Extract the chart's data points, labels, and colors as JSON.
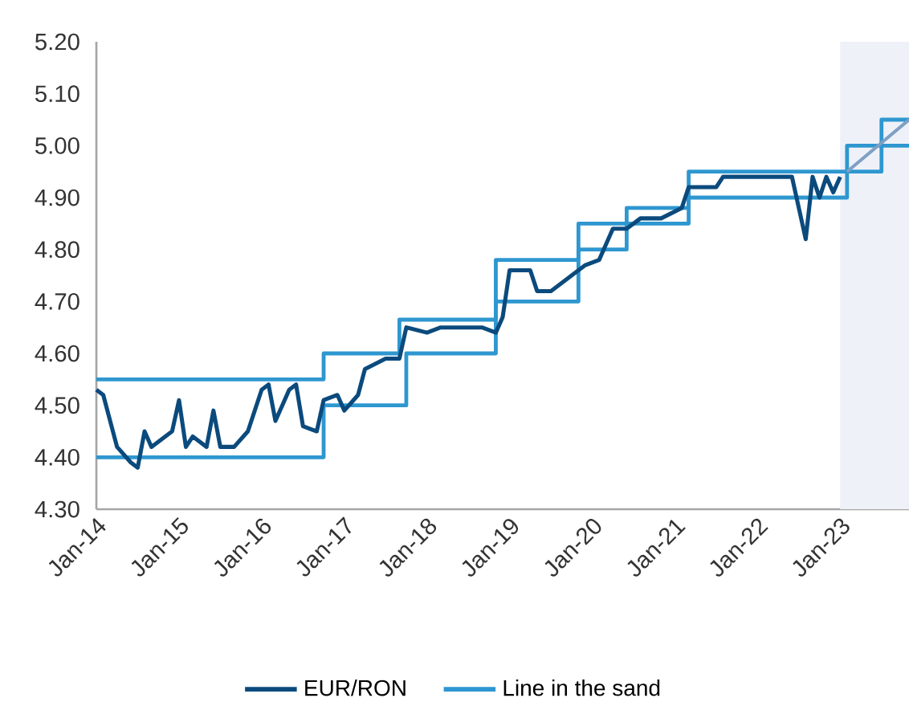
{
  "chart_data": {
    "type": "line",
    "xlim": [
      "2014-01",
      "2023-11"
    ],
    "xticks": [
      {
        "value": "2014-01",
        "label": "Jan-14"
      },
      {
        "value": "2015-01",
        "label": "Jan-15"
      },
      {
        "value": "2016-01",
        "label": "Jan-16"
      },
      {
        "value": "2017-01",
        "label": "Jan-17"
      },
      {
        "value": "2018-01",
        "label": "Jan-18"
      },
      {
        "value": "2019-01",
        "label": "Jan-19"
      },
      {
        "value": "2020-01",
        "label": "Jan-20"
      },
      {
        "value": "2021-01",
        "label": "Jan-21"
      },
      {
        "value": "2022-01",
        "label": "Jan-22"
      },
      {
        "value": "2023-01",
        "label": "Jan-23"
      }
    ],
    "ylim": [
      4.3,
      5.2
    ],
    "yticks": [
      {
        "value": 4.3,
        "label": "4.30"
      },
      {
        "value": 4.4,
        "label": "4.40"
      },
      {
        "value": 4.5,
        "label": "4.50"
      },
      {
        "value": 4.6,
        "label": "4.60"
      },
      {
        "value": 4.7,
        "label": "4.70"
      },
      {
        "value": 4.8,
        "label": "4.80"
      },
      {
        "value": 4.9,
        "label": "4.90"
      },
      {
        "value": 5.0,
        "label": "5.00"
      },
      {
        "value": 5.1,
        "label": "5.10"
      },
      {
        "value": 5.2,
        "label": "5.20"
      }
    ],
    "grid": false,
    "legend": "bottom",
    "bands": [
      {
        "axis": "x",
        "from": "2023-01",
        "to": "2023-11",
        "color": "#eef1f8"
      }
    ],
    "series": [
      {
        "name": "EUR/RON",
        "color": "#0b4a7d",
        "x": [
          "2014-01",
          "2014-02",
          "2014-03",
          "2014-04",
          "2014-06",
          "2014-07",
          "2014-08",
          "2014-09",
          "2014-10",
          "2014-12",
          "2015-01",
          "2015-02",
          "2015-03",
          "2015-05",
          "2015-06",
          "2015-07",
          "2015-09",
          "2015-11",
          "2016-01",
          "2016-02",
          "2016-03",
          "2016-04",
          "2016-05",
          "2016-06",
          "2016-07",
          "2016-09",
          "2016-10",
          "2016-12",
          "2017-01",
          "2017-03",
          "2017-04",
          "2017-07",
          "2017-09",
          "2017-10",
          "2018-01",
          "2018-03",
          "2018-05",
          "2018-07",
          "2018-09",
          "2018-11",
          "2018-12",
          "2019-01",
          "2019-04",
          "2019-05",
          "2019-07",
          "2019-12",
          "2020-02",
          "2020-03",
          "2020-04",
          "2020-06",
          "2020-08",
          "2020-11",
          "2021-02",
          "2021-03",
          "2021-07",
          "2021-08",
          "2022-02",
          "2022-06",
          "2022-07",
          "2022-08",
          "2022-09",
          "2022-10",
          "2022-11",
          "2022-12",
          "2023-01"
        ],
        "values": [
          4.53,
          4.52,
          4.47,
          4.42,
          4.39,
          4.38,
          4.45,
          4.42,
          4.43,
          4.45,
          4.51,
          4.42,
          4.44,
          4.42,
          4.49,
          4.42,
          4.42,
          4.45,
          4.53,
          4.54,
          4.47,
          4.5,
          4.53,
          4.54,
          4.46,
          4.45,
          4.51,
          4.52,
          4.49,
          4.52,
          4.57,
          4.59,
          4.59,
          4.65,
          4.64,
          4.65,
          4.65,
          4.65,
          4.65,
          4.64,
          4.67,
          4.76,
          4.76,
          4.72,
          4.72,
          4.77,
          4.78,
          4.81,
          4.84,
          4.84,
          4.86,
          4.86,
          4.88,
          4.92,
          4.92,
          4.94,
          4.94,
          4.94,
          4.88,
          4.82,
          4.94,
          4.9,
          4.94,
          4.91,
          4.94
        ]
      },
      {
        "name": "Line in the sand",
        "type": "step",
        "color": "#2e97d0",
        "x": [
          "2014-01",
          "2016-10",
          "2017-09",
          "2018-11",
          "2019-11",
          "2020-06",
          "2021-03",
          "2023-02",
          "2023-07",
          "2023-11"
        ],
        "values": [
          4.55,
          4.6,
          4.665,
          4.78,
          4.85,
          4.88,
          4.95,
          5.0,
          5.05,
          5.05
        ]
      },
      {
        "type": "step",
        "color": "#2e97d0",
        "x": [
          "2014-01",
          "2016-10",
          "2017-10",
          "2018-11",
          "2019-11",
          "2020-06",
          "2021-03",
          "2023-02",
          "2023-07",
          "2023-11"
        ],
        "values": [
          4.4,
          4.5,
          4.6,
          4.7,
          4.8,
          4.85,
          4.9,
          4.95,
          5.0,
          5.0
        ]
      },
      {
        "color": "#7f9fc4",
        "x": [
          "2023-02",
          "2023-11"
        ],
        "values": [
          4.95,
          5.05
        ]
      }
    ]
  }
}
